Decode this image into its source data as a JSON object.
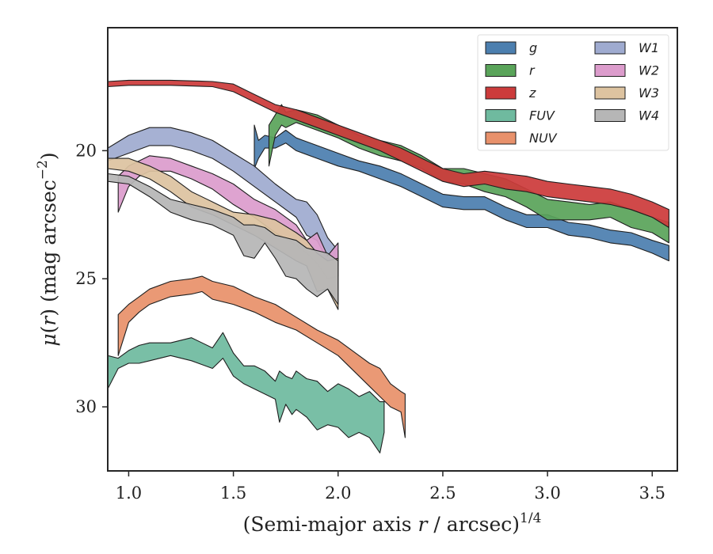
{
  "chart_data": {
    "type": "area",
    "xlabel_main": "(Semi-major axis ",
    "xlabel_var": "r",
    "xlabel_tail": " / arcsec)",
    "xlabel_exp": "1/4",
    "ylabel_mu": "μ",
    "ylabel_open": "(",
    "ylabel_var": "r",
    "ylabel_close": ") (mag arcsec",
    "ylabel_exp": "−2",
    "ylabel_end": ")",
    "xlim": [
      0.9,
      3.62
    ],
    "ylim": [
      32.5,
      15.2
    ],
    "y_inverted": true,
    "x_ticks": [
      1.0,
      1.5,
      2.0,
      2.5,
      3.0,
      3.5
    ],
    "x_tick_labels": [
      "1.0",
      "1.5",
      "2.0",
      "2.5",
      "3.0",
      "3.5"
    ],
    "y_ticks": [
      20,
      25,
      30
    ],
    "y_tick_labels": [
      "20",
      "25",
      "30"
    ],
    "legend_position": "top-right",
    "legend_columns": 2,
    "series": [
      {
        "name": "g",
        "color": "#4c7faf",
        "x": [
          1.6,
          1.62,
          1.65,
          1.7,
          1.75,
          1.8,
          1.9,
          2.0,
          2.1,
          2.2,
          2.3,
          2.4,
          2.5,
          2.6,
          2.7,
          2.8,
          2.9,
          3.0,
          3.1,
          3.2,
          3.3,
          3.4,
          3.5,
          3.58
        ],
        "lo": [
          19.0,
          19.6,
          19.4,
          19.5,
          19.2,
          19.5,
          19.8,
          20.1,
          20.4,
          20.6,
          20.9,
          21.3,
          21.7,
          21.8,
          21.8,
          22.2,
          22.5,
          22.5,
          22.8,
          22.9,
          23.1,
          23.2,
          23.5,
          23.7
        ],
        "hi": [
          20.7,
          20.3,
          19.9,
          19.9,
          19.7,
          20.0,
          20.3,
          20.6,
          20.8,
          21.1,
          21.4,
          21.8,
          22.2,
          22.3,
          22.3,
          22.7,
          23.0,
          23.0,
          23.3,
          23.4,
          23.6,
          23.7,
          24.0,
          24.3
        ]
      },
      {
        "name": "r",
        "color": "#5aa45a",
        "x": [
          1.67,
          1.7,
          1.73,
          1.75,
          1.8,
          1.9,
          2.0,
          2.1,
          2.2,
          2.3,
          2.4,
          2.5,
          2.6,
          2.7,
          2.8,
          2.9,
          3.0,
          3.1,
          3.2,
          3.3,
          3.4,
          3.5,
          3.58
        ],
        "lo": [
          19.0,
          18.6,
          18.2,
          18.5,
          18.4,
          18.6,
          19.0,
          19.4,
          19.6,
          19.8,
          20.2,
          20.7,
          20.7,
          20.9,
          21.1,
          21.5,
          21.9,
          22.0,
          22.1,
          22.0,
          22.3,
          22.6,
          22.8
        ],
        "hi": [
          20.6,
          19.4,
          19.0,
          19.1,
          18.9,
          19.2,
          19.5,
          19.9,
          20.2,
          20.4,
          20.7,
          21.2,
          21.3,
          21.6,
          21.8,
          22.2,
          22.7,
          22.7,
          22.7,
          22.6,
          23.0,
          23.2,
          23.6
        ]
      },
      {
        "name": "z",
        "color": "#cc3b3b",
        "x": [
          0.9,
          1.0,
          1.2,
          1.4,
          1.5,
          1.6,
          1.7,
          1.8,
          1.9,
          2.0,
          2.1,
          2.2,
          2.3,
          2.4,
          2.5,
          2.6,
          2.7,
          2.8,
          2.9,
          3.0,
          3.1,
          3.2,
          3.3,
          3.4,
          3.5,
          3.58
        ],
        "lo": [
          17.3,
          17.25,
          17.25,
          17.3,
          17.4,
          17.8,
          18.2,
          18.4,
          18.7,
          19.0,
          19.3,
          19.6,
          19.9,
          20.3,
          20.7,
          20.9,
          20.8,
          20.9,
          21.0,
          21.2,
          21.3,
          21.4,
          21.5,
          21.7,
          22.0,
          22.3
        ],
        "hi": [
          17.5,
          17.45,
          17.45,
          17.5,
          17.7,
          18.1,
          18.5,
          18.8,
          19.1,
          19.4,
          19.7,
          20.0,
          20.4,
          20.8,
          21.2,
          21.4,
          21.3,
          21.5,
          21.6,
          21.8,
          21.9,
          22.0,
          22.1,
          22.3,
          22.6,
          23.0
        ]
      },
      {
        "name": "FUV",
        "color": "#6fba9f",
        "x": [
          0.9,
          0.95,
          1.0,
          1.05,
          1.1,
          1.2,
          1.3,
          1.4,
          1.45,
          1.5,
          1.55,
          1.6,
          1.65,
          1.7,
          1.72,
          1.75,
          1.78,
          1.8,
          1.85,
          1.9,
          1.95,
          2.0,
          2.05,
          2.1,
          2.15,
          2.2,
          2.22
        ],
        "lo": [
          28.0,
          28.1,
          27.8,
          27.6,
          27.5,
          27.5,
          27.3,
          27.7,
          27.1,
          27.9,
          28.4,
          28.4,
          28.6,
          29.0,
          28.6,
          28.8,
          28.9,
          28.6,
          28.9,
          29.0,
          29.4,
          29.1,
          29.3,
          29.6,
          29.4,
          29.8,
          29.8
        ],
        "hi": [
          29.3,
          28.5,
          28.3,
          28.3,
          28.2,
          28.0,
          28.2,
          28.5,
          28.1,
          28.8,
          29.1,
          29.3,
          29.5,
          29.7,
          30.6,
          29.9,
          30.3,
          30.1,
          30.4,
          30.9,
          30.7,
          30.8,
          31.2,
          31.0,
          31.2,
          31.8,
          31.0
        ]
      },
      {
        "name": "NUV",
        "color": "#e8916b",
        "x": [
          0.95,
          1.0,
          1.05,
          1.1,
          1.2,
          1.3,
          1.35,
          1.4,
          1.5,
          1.6,
          1.7,
          1.8,
          1.9,
          2.0,
          2.1,
          2.15,
          2.2,
          2.25,
          2.3,
          2.32
        ],
        "lo": [
          26.4,
          26.0,
          25.7,
          25.4,
          25.1,
          25.0,
          24.9,
          25.1,
          25.3,
          25.7,
          26.0,
          26.5,
          27.0,
          27.4,
          28.0,
          28.3,
          28.5,
          29.1,
          29.4,
          29.5
        ],
        "hi": [
          28.0,
          26.7,
          26.3,
          26.0,
          25.7,
          25.6,
          25.5,
          25.8,
          26.0,
          26.3,
          26.7,
          27.0,
          27.5,
          28.0,
          28.8,
          29.2,
          29.6,
          30.0,
          30.2,
          31.2
        ]
      },
      {
        "name": "W1",
        "color": "#9fabd0",
        "x": [
          0.9,
          1.0,
          1.1,
          1.2,
          1.3,
          1.4,
          1.5,
          1.6,
          1.7,
          1.8,
          1.85,
          1.9,
          1.95,
          2.0
        ],
        "lo": [
          19.9,
          19.4,
          19.1,
          19.1,
          19.3,
          19.6,
          20.1,
          20.6,
          21.3,
          21.9,
          22.0,
          22.5,
          23.4,
          23.9
        ],
        "hi": [
          20.4,
          20.1,
          19.8,
          19.8,
          20.0,
          20.3,
          20.8,
          21.4,
          22.0,
          22.6,
          23.3,
          23.5,
          24.3,
          24.5
        ]
      },
      {
        "name": "W2",
        "color": "#dc9ccc",
        "x": [
          0.95,
          1.0,
          1.05,
          1.1,
          1.2,
          1.3,
          1.4,
          1.5,
          1.6,
          1.7,
          1.8,
          1.85,
          1.9,
          1.95,
          2.0
        ],
        "lo": [
          21.0,
          20.6,
          20.4,
          20.2,
          20.3,
          20.6,
          20.9,
          21.3,
          21.9,
          22.3,
          22.9,
          23.5,
          23.2,
          24.1,
          23.6
        ],
        "hi": [
          22.4,
          21.4,
          21.0,
          20.8,
          20.8,
          21.1,
          21.5,
          22.1,
          22.6,
          23.2,
          23.7,
          24.0,
          24.4,
          25.0,
          24.9
        ]
      },
      {
        "name": "W3",
        "color": "#ddc3a0",
        "x": [
          0.9,
          1.0,
          1.1,
          1.2,
          1.3,
          1.4,
          1.5,
          1.6,
          1.7,
          1.8,
          1.85,
          1.9,
          1.95,
          2.0
        ],
        "lo": [
          20.3,
          20.3,
          20.6,
          21.0,
          21.6,
          22.0,
          22.4,
          22.5,
          22.7,
          23.2,
          23.5,
          24.0,
          24.3,
          24.2
        ],
        "hi": [
          20.7,
          20.8,
          21.1,
          21.6,
          22.2,
          22.5,
          22.9,
          23.3,
          23.8,
          24.3,
          24.5,
          25.5,
          25.4,
          26.2
        ]
      },
      {
        "name": "W4",
        "color": "#b6b6b6",
        "x": [
          0.9,
          1.0,
          1.1,
          1.2,
          1.3,
          1.4,
          1.5,
          1.55,
          1.6,
          1.65,
          1.7,
          1.75,
          1.8,
          1.85,
          1.9,
          1.95,
          2.0
        ],
        "lo": [
          20.9,
          21.0,
          21.4,
          21.9,
          22.1,
          22.3,
          22.6,
          22.9,
          22.9,
          23.0,
          23.3,
          23.4,
          23.5,
          23.8,
          23.9,
          24.0,
          24.3
        ],
        "hi": [
          21.2,
          21.3,
          21.8,
          22.4,
          22.7,
          22.9,
          23.3,
          24.1,
          24.2,
          23.6,
          24.2,
          24.9,
          25.0,
          25.4,
          25.7,
          25.4,
          26.0
        ]
      }
    ]
  }
}
